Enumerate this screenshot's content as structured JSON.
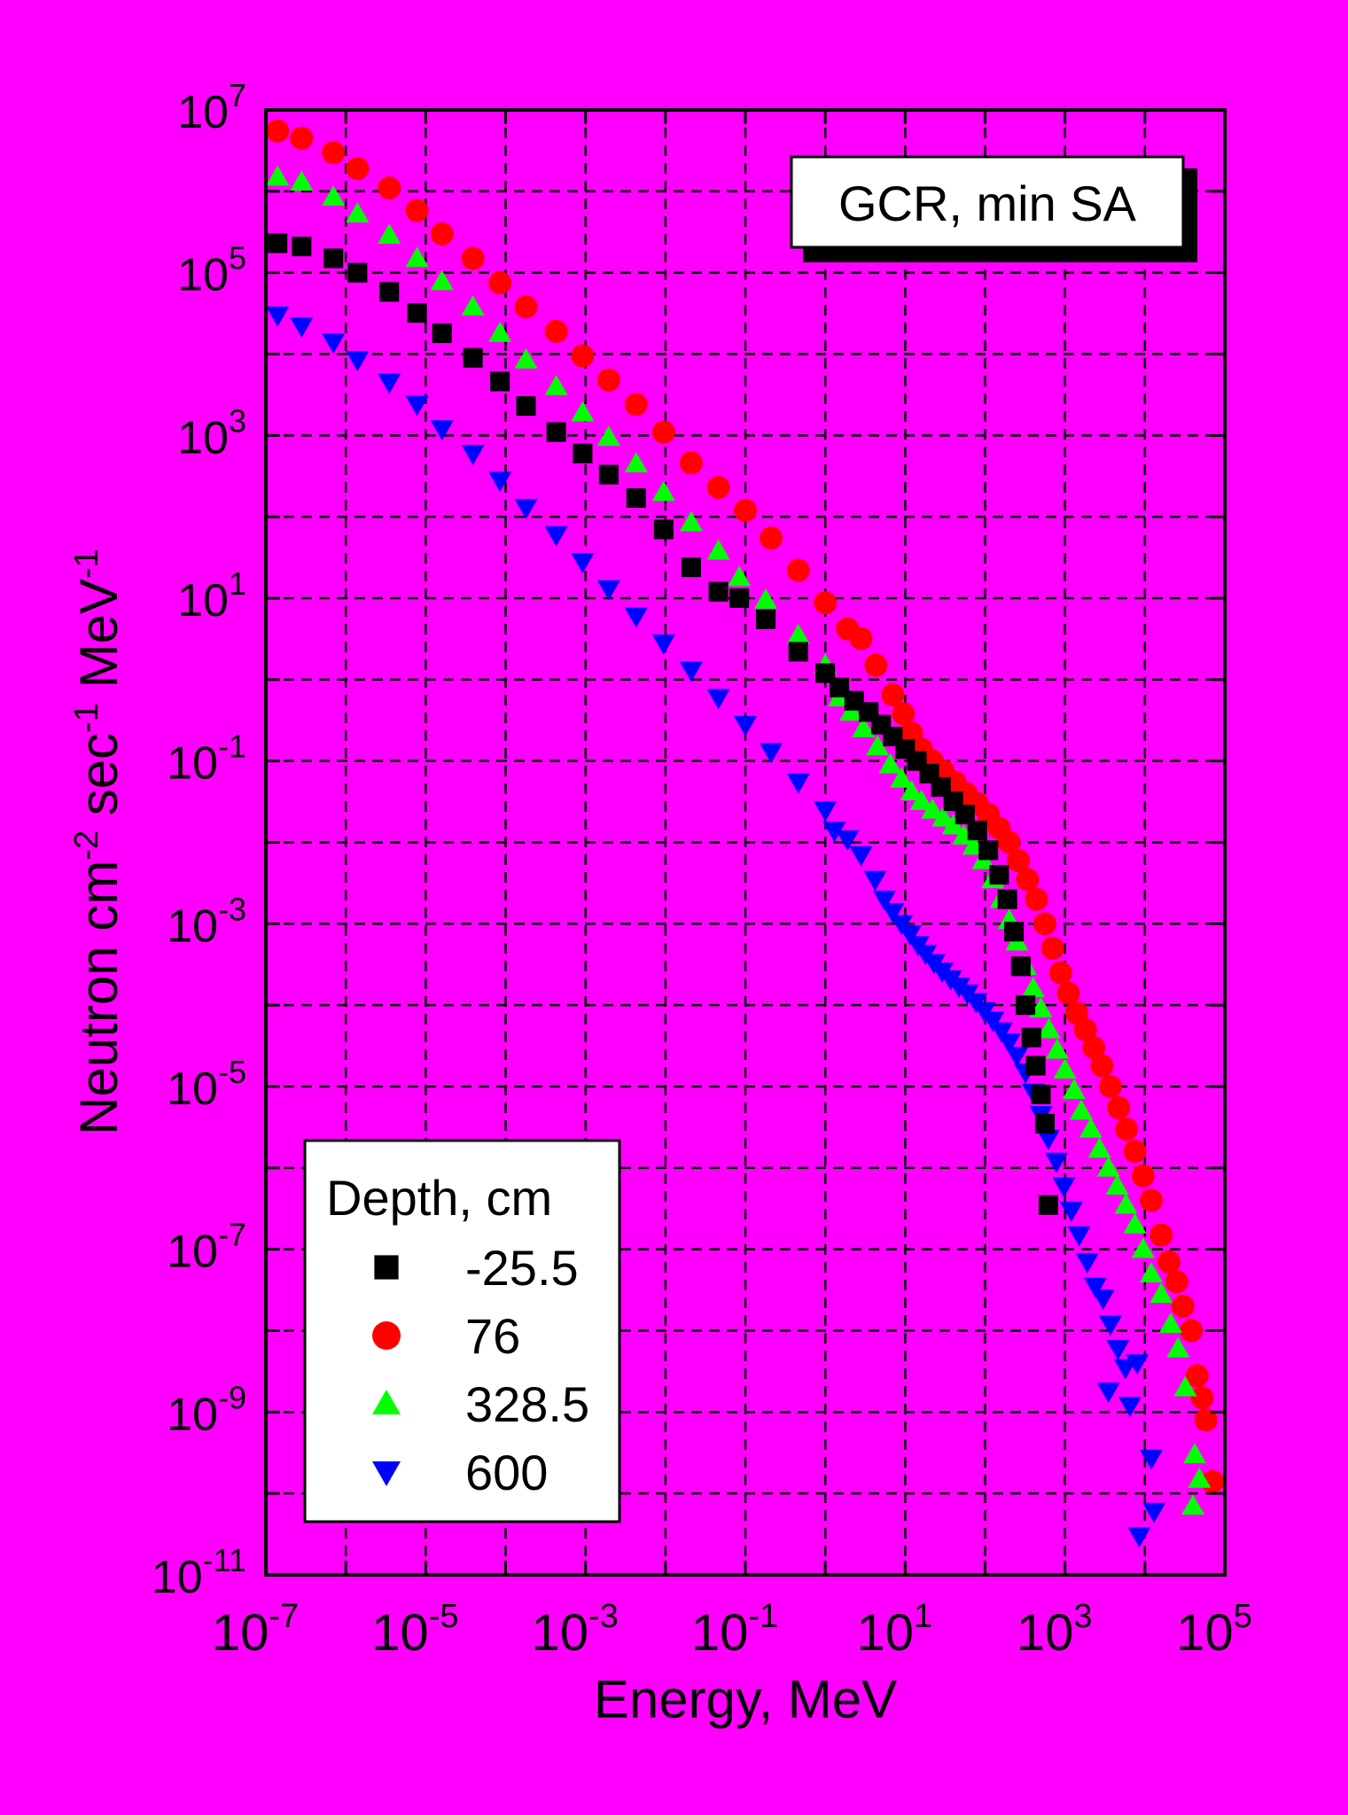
{
  "colors": {
    "background": "#ff00ff",
    "series": [
      "#000000",
      "#ff0000",
      "#00ff00",
      "#0000ff"
    ]
  },
  "chart_data": {
    "type": "scatter",
    "title": "",
    "annotation": "GCR, min SA",
    "xlabel": "Energy, MeV",
    "ylabel": "Neutron cm-2 sec-1 MeV-1",
    "xscale": "log",
    "yscale": "log",
    "xlim": [
      1e-07,
      100000.0
    ],
    "ylim": [
      1e-11,
      10000000.0
    ],
    "x_ticks": [
      {
        "base": "10",
        "exp": "-7"
      },
      {
        "base": "10",
        "exp": "-5"
      },
      {
        "base": "10",
        "exp": "-3"
      },
      {
        "base": "10",
        "exp": "-1"
      },
      {
        "base": "10",
        "exp": "1"
      },
      {
        "base": "10",
        "exp": "3"
      },
      {
        "base": "10",
        "exp": "5"
      }
    ],
    "y_ticks": [
      {
        "base": "10",
        "exp": "-11"
      },
      {
        "base": "10",
        "exp": "-9"
      },
      {
        "base": "10",
        "exp": "-7"
      },
      {
        "base": "10",
        "exp": "-5"
      },
      {
        "base": "10",
        "exp": "-3"
      },
      {
        "base": "10",
        "exp": "-1"
      },
      {
        "base": "10",
        "exp": "1"
      },
      {
        "base": "10",
        "exp": "3"
      },
      {
        "base": "10",
        "exp": "5"
      },
      {
        "base": "10",
        "exp": "7"
      }
    ],
    "grid": true,
    "legend": {
      "title": "Depth, cm",
      "placement": "bottom-left"
    },
    "series": [
      {
        "name": "-25.5",
        "marker": "square",
        "color": "#000000",
        "points": [
          [
            1.4e-07,
            230000.0
          ],
          [
            2.8e-07,
            210000.0
          ],
          [
            7e-07,
            150000.0
          ],
          [
            1.4e-06,
            100000.0
          ],
          [
            3.5e-06,
            58000.0
          ],
          [
            7.8e-06,
            32000.0
          ],
          [
            1.6e-05,
            18000.0
          ],
          [
            3.9e-05,
            9000.0
          ],
          [
            8.5e-05,
            4600.0
          ],
          [
            0.00018,
            2300.0
          ],
          [
            0.00043,
            1100.0
          ],
          [
            0.00092,
            600.0
          ],
          [
            0.00195,
            330.0
          ],
          [
            0.0043,
            170.0
          ],
          [
            0.0095,
            70
          ],
          [
            0.021,
            24
          ],
          [
            0.046,
            12
          ],
          [
            0.084,
            10
          ],
          [
            0.18,
            5.5
          ],
          [
            0.46,
            2.2
          ],
          [
            1.0,
            1.2
          ],
          [
            1.5,
            0.8
          ],
          [
            2.3,
            0.55
          ],
          [
            3.5,
            0.4
          ],
          [
            5.0,
            0.28
          ],
          [
            7.0,
            0.2
          ],
          [
            10.0,
            0.14
          ],
          [
            14.0,
            0.1
          ],
          [
            20.0,
            0.07
          ],
          [
            28.0,
            0.048
          ],
          [
            40.0,
            0.032
          ],
          [
            56.0,
            0.022
          ],
          [
            80.0,
            0.014
          ],
          [
            110.0,
            0.008
          ],
          [
            150.0,
            0.004
          ],
          [
            190.0,
            0.002
          ],
          [
            230.0,
            0.0008
          ],
          [
            280.0,
            0.0003
          ],
          [
            320.0,
            0.0001
          ],
          [
            380.0,
            4e-05
          ],
          [
            430.0,
            1.8e-05
          ],
          [
            500.0,
            8e-06
          ],
          [
            560.0,
            3.5e-06
          ],
          [
            620.0,
            3.5e-07
          ]
        ]
      },
      {
        "name": "76",
        "marker": "circle",
        "color": "#ff0000",
        "points": [
          [
            1.4e-07,
            5500000.0
          ],
          [
            2.8e-07,
            4500000.0
          ],
          [
            7e-07,
            3000000.0
          ],
          [
            1.4e-06,
            1900000.0
          ],
          [
            3.5e-06,
            1100000.0
          ],
          [
            7.8e-06,
            580000.0
          ],
          [
            1.6e-05,
            300000.0
          ],
          [
            3.9e-05,
            150000.0
          ],
          [
            8.5e-05,
            75000.0
          ],
          [
            0.00018,
            38000.0
          ],
          [
            0.00043,
            19000.0
          ],
          [
            0.00092,
            9500.0
          ],
          [
            0.00195,
            4800.0
          ],
          [
            0.0043,
            2400.0
          ],
          [
            0.0095,
            1100.0
          ],
          [
            0.021,
            460.0
          ],
          [
            0.046,
            230.0
          ],
          [
            0.1,
            120.0
          ],
          [
            0.21,
            55
          ],
          [
            0.46,
            22
          ],
          [
            1.0,
            8.8
          ],
          [
            1.9,
            4.2
          ],
          [
            2.8,
            3.2
          ],
          [
            4.3,
            1.5
          ],
          [
            7.0,
            0.65
          ],
          [
            9.5,
            0.38
          ],
          [
            12.0,
            0.22
          ],
          [
            16.0,
            0.14
          ],
          [
            22.0,
            0.1
          ],
          [
            30.0,
            0.075
          ],
          [
            42.0,
            0.055
          ],
          [
            58.0,
            0.04
          ],
          [
            80.0,
            0.03
          ],
          [
            110.0,
            0.022
          ],
          [
            150.0,
            0.015
          ],
          [
            200.0,
            0.01
          ],
          [
            260.0,
            0.006
          ],
          [
            340.0,
            0.0035
          ],
          [
            440.0,
            0.002
          ],
          [
            560.0,
            0.001
          ],
          [
            700.0,
            0.0005
          ],
          [
            880.0,
            0.00025
          ],
          [
            1100.0,
            0.00014
          ],
          [
            1400.0,
            8e-05
          ],
          [
            1800.0,
            5e-05
          ],
          [
            2300.0,
            3e-05
          ],
          [
            2900.0,
            1.8e-05
          ],
          [
            3700.0,
            1e-05
          ],
          [
            4700.0,
            5.5e-06
          ],
          [
            5900.0,
            3e-06
          ],
          [
            7500.0,
            1.6e-06
          ],
          [
            9500.0,
            8e-07
          ],
          [
            12000.0,
            4e-07
          ],
          [
            16000.0,
            1.5e-07
          ],
          [
            20000.0,
            7e-08
          ],
          [
            25000.0,
            4e-08
          ],
          [
            30000.0,
            2e-08
          ],
          [
            38000.0,
            1e-08
          ],
          [
            45000.0,
            2.8e-09
          ],
          [
            52000.0,
            1.5e-09
          ],
          [
            58000.0,
            8e-10
          ],
          [
            70000.0,
            1.4e-10
          ]
        ]
      },
      {
        "name": "328.5",
        "marker": "triangle-up",
        "color": "#00ff00",
        "points": [
          [
            1.4e-07,
            1500000.0
          ],
          [
            2.8e-07,
            1300000.0
          ],
          [
            7e-07,
            850000.0
          ],
          [
            1.4e-06,
            530000.0
          ],
          [
            3.5e-06,
            290000.0
          ],
          [
            7.8e-06,
            150000.0
          ],
          [
            1.6e-05,
            78000.0
          ],
          [
            3.9e-05,
            38000.0
          ],
          [
            8.5e-05,
            18000.0
          ],
          [
            0.00018,
            8500.0
          ],
          [
            0.00043,
            4000.0
          ],
          [
            0.00092,
            1900.0
          ],
          [
            0.00195,
            950.0
          ],
          [
            0.0043,
            450.0
          ],
          [
            0.0095,
            200.0
          ],
          [
            0.021,
            85
          ],
          [
            0.046,
            38
          ],
          [
            0.084,
            18
          ],
          [
            0.18,
            9.5
          ],
          [
            0.46,
            3.5
          ],
          [
            1.0,
            1.5
          ],
          [
            1.5,
            0.6
          ],
          [
            2.1,
            0.4
          ],
          [
            3.0,
            0.25
          ],
          [
            4.5,
            0.15
          ],
          [
            6.5,
            0.09
          ],
          [
            9.0,
            0.06
          ],
          [
            12.0,
            0.042
          ],
          [
            16.0,
            0.032
          ],
          [
            22.0,
            0.025
          ],
          [
            30.0,
            0.02
          ],
          [
            40.0,
            0.016
          ],
          [
            54.0,
            0.012
          ],
          [
            72.0,
            0.009
          ],
          [
            95.0,
            0.006
          ],
          [
            125.0,
            0.0035
          ],
          [
            160.0,
            0.002
          ],
          [
            200.0,
            0.0011
          ],
          [
            250.0,
            0.0006
          ],
          [
            320.0,
            0.0003
          ],
          [
            400.0,
            0.00016
          ],
          [
            500.0,
            9e-05
          ],
          [
            630.0,
            5e-05
          ],
          [
            800.0,
            2.8e-05
          ],
          [
            1000.0,
            1.6e-05
          ],
          [
            1300.0,
            9e-06
          ],
          [
            1600.0,
            5e-06
          ],
          [
            2100.0,
            3e-06
          ],
          [
            2700.0,
            1.7e-06
          ],
          [
            3500.0,
            1e-06
          ],
          [
            4500.0,
            6e-07
          ],
          [
            5800.0,
            3.5e-07
          ],
          [
            7500.0,
            2e-07
          ],
          [
            9500.0,
            1e-07
          ],
          [
            12000.0,
            5e-08
          ],
          [
            16000.0,
            2.8e-08
          ],
          [
            21000.0,
            1.2e-08
          ],
          [
            26000.0,
            6e-09
          ],
          [
            32000.0,
            2e-09
          ],
          [
            42000.0,
            3e-10
          ],
          [
            48000.0,
            1.5e-10
          ],
          [
            40000.0,
            7e-11
          ]
        ]
      },
      {
        "name": "600",
        "marker": "triangle-down",
        "color": "#0000ff",
        "points": [
          [
            1.4e-07,
            30000.0
          ],
          [
            2.8e-07,
            22000.0
          ],
          [
            7e-07,
            14000.0
          ],
          [
            1.4e-06,
            8500.0
          ],
          [
            3.5e-06,
            4500.0
          ],
          [
            7.8e-06,
            2400.0
          ],
          [
            1.6e-05,
            1200.0
          ],
          [
            3.9e-05,
            600.0
          ],
          [
            8.5e-05,
            280.0
          ],
          [
            0.00018,
            130.0
          ],
          [
            0.00043,
            60
          ],
          [
            0.00092,
            28
          ],
          [
            0.00195,
            13
          ],
          [
            0.0043,
            6.0
          ],
          [
            0.0095,
            2.8
          ],
          [
            0.021,
            1.3
          ],
          [
            0.046,
            0.6
          ],
          [
            0.1,
            0.28
          ],
          [
            0.21,
            0.13
          ],
          [
            0.46,
            0.055
          ],
          [
            1.0,
            0.025
          ],
          [
            1.3,
            0.014
          ],
          [
            1.9,
            0.011
          ],
          [
            2.8,
            0.007
          ],
          [
            4.2,
            0.0035
          ],
          [
            5.5,
            0.002
          ],
          [
            7.0,
            0.0014
          ],
          [
            9.0,
            0.001
          ],
          [
            11.5,
            0.00075
          ],
          [
            14.5,
            0.00055
          ],
          [
            18.0,
            0.00043
          ],
          [
            23.0,
            0.00033
          ],
          [
            29.0,
            0.00026
          ],
          [
            37.0,
            0.00021
          ],
          [
            47.0,
            0.00017
          ],
          [
            60.0,
            0.00014
          ],
          [
            77.0,
            0.00011
          ],
          [
            98.0,
            8.5e-05
          ],
          [
            125.0,
            6.5e-05
          ],
          [
            160.0,
            4.8e-05
          ],
          [
            200.0,
            3.5e-05
          ],
          [
            250.0,
            2.4e-05
          ],
          [
            320.0,
            1.5e-05
          ],
          [
            400.0,
            8.5e-06
          ],
          [
            500.0,
            4.5e-06
          ],
          [
            620.0,
            2.3e-06
          ],
          [
            780.0,
            1.2e-06
          ],
          [
            970.0,
            6e-07
          ],
          [
            1200.0,
            3e-07
          ],
          [
            1500.0,
            1.5e-07
          ],
          [
            1900.0,
            7e-08
          ],
          [
            2400.0,
            3.5e-08
          ],
          [
            3000.0,
            2.5e-08
          ],
          [
            3700.0,
            1.2e-08
          ],
          [
            4600.0,
            6e-09
          ],
          [
            5700.0,
            3.5e-09
          ],
          [
            3500.0,
            1.8e-09
          ],
          [
            8000.0,
            4e-09
          ],
          [
            6500.0,
            1.2e-09
          ],
          [
            12000.0,
            2.7e-10
          ],
          [
            13000.0,
            6e-11
          ],
          [
            8500.0,
            3e-11
          ]
        ]
      }
    ]
  }
}
